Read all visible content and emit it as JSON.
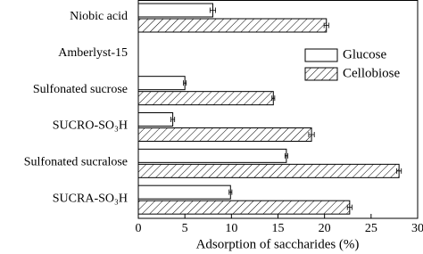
{
  "chart_data": {
    "type": "hbar",
    "categories": [
      "Niobic acid",
      "Amberlyst-15",
      "Sulfonated sucrose",
      "SUCRO-SO₃H",
      "Sulfonated sucralose",
      "SUCRA-SO₃H"
    ],
    "series": [
      {
        "name": "Glucose",
        "color": "#000000",
        "hatch": false,
        "values": [
          8.0,
          0,
          5.0,
          3.7,
          15.9,
          9.9
        ],
        "errors": [
          0.3,
          0,
          0.15,
          0.2,
          0.15,
          0.15
        ]
      },
      {
        "name": "Cellobiose",
        "color": "#000000",
        "hatch": true,
        "values": [
          20.2,
          0,
          14.5,
          18.6,
          28.0,
          22.7
        ],
        "errors": [
          0.25,
          0,
          0.15,
          0.3,
          0.25,
          0.25
        ]
      }
    ],
    "xlabel": "Adsorption of saccharides (%)",
    "xlim": [
      0,
      30
    ],
    "xticks": [
      0,
      5,
      10,
      15,
      20,
      25,
      30
    ],
    "legend": "upper right"
  }
}
